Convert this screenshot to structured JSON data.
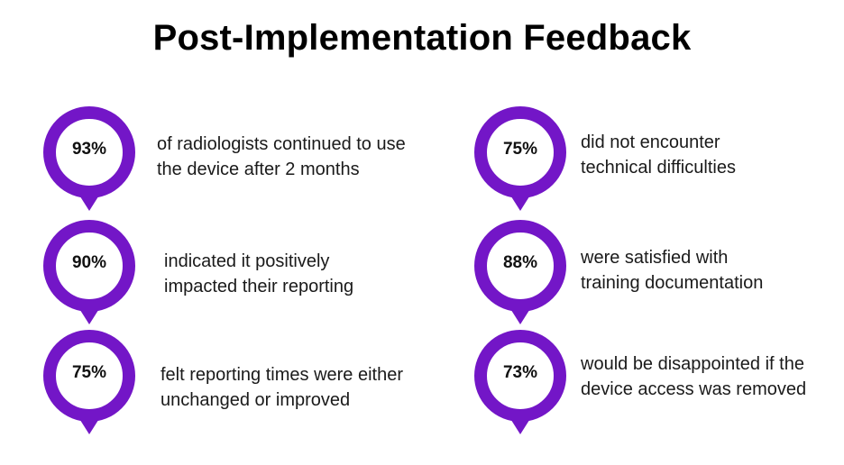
{
  "title": "Post-Implementation Feedback",
  "accent_color": "#7316c7",
  "icon": "map-pin-marker-icon",
  "stats": [
    {
      "percent": "93%",
      "line1": "of radiologists continued to use",
      "line2": "the device after 2 months"
    },
    {
      "percent": "90%",
      "line1": "indicated it positively",
      "line2": "impacted their reporting"
    },
    {
      "percent": "75%",
      "line1": "felt reporting times were either",
      "line2": "unchanged or improved"
    },
    {
      "percent": "75%",
      "line1": "did not encounter",
      "line2": "technical difficulties"
    },
    {
      "percent": "88%",
      "line1": "were satisfied with",
      "line2": "training documentation"
    },
    {
      "percent": "73%",
      "line1": "would be disappointed if the",
      "line2": "device access was removed"
    }
  ]
}
